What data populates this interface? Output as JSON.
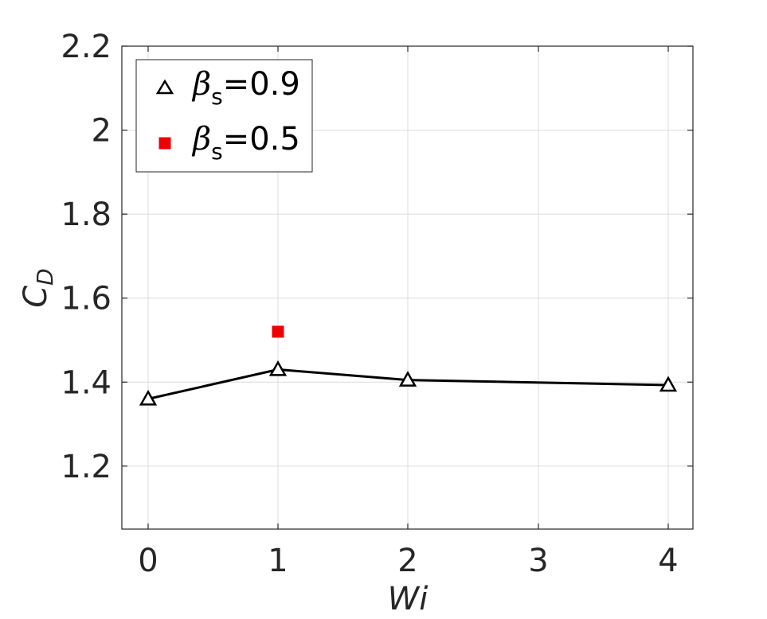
{
  "chart_data": {
    "type": "line",
    "xlabel": "Wi",
    "ylabel": {
      "main": "C",
      "sub": "D"
    },
    "xlim": [
      -0.2,
      4.2
    ],
    "ylim": [
      1.05,
      2.2
    ],
    "x_tick_positions": [
      0,
      1,
      2,
      3,
      4
    ],
    "x_tick_labels": [
      "0",
      "1",
      "2",
      "3",
      "4"
    ],
    "y_ticks": [
      1.2,
      1.4,
      1.6,
      1.8,
      2.0,
      2.2
    ],
    "y_tick_labels": [
      "1.2",
      "1.4",
      "1.6",
      "1.8",
      "2",
      "2.2"
    ],
    "grid": true,
    "legend_position": "top-left",
    "series": [
      {
        "legend_symbol": "β",
        "legend_sub": "s",
        "legend_value": "=0.9",
        "marker": "triangle-open",
        "line": true,
        "color": "#000000",
        "x": [
          0,
          1,
          2,
          4
        ],
        "y": [
          1.36,
          1.43,
          1.405,
          1.393
        ]
      },
      {
        "legend_symbol": "β",
        "legend_sub": "s",
        "legend_value": "=0.5",
        "marker": "square-filled",
        "line": false,
        "color": "#ee0000",
        "x": [
          1
        ],
        "y": [
          1.52
        ]
      }
    ]
  }
}
